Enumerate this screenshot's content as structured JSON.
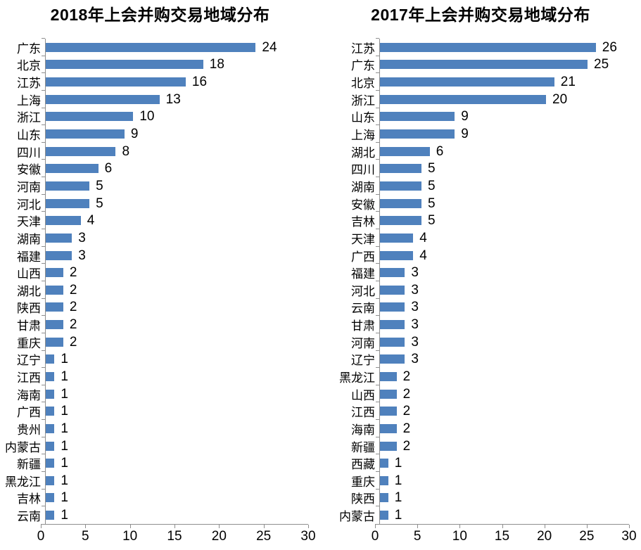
{
  "colors": {
    "bar": "#4F81BD",
    "axis": "#8E8E8E",
    "text": "#000000",
    "background": "#FFFFFF"
  },
  "chart_data": [
    {
      "type": "bar",
      "orientation": "horizontal",
      "title": "2018年上会并购交易地域分布",
      "categories": [
        "广东",
        "北京",
        "江苏",
        "上海",
        "浙江",
        "山东",
        "四川",
        "安徽",
        "河南",
        "河北",
        "天津",
        "湖南",
        "福建",
        "山西",
        "湖北",
        "陕西",
        "甘肃",
        "重庆",
        "辽宁",
        "江西",
        "海南",
        "广西",
        "贵州",
        "内蒙古",
        "新疆",
        "黑龙江",
        "吉林",
        "云南"
      ],
      "values": [
        24,
        18,
        16,
        13,
        10,
        9,
        8,
        6,
        5,
        5,
        4,
        3,
        3,
        2,
        2,
        2,
        2,
        2,
        1,
        1,
        1,
        1,
        1,
        1,
        1,
        1,
        1,
        1
      ],
      "xlim": [
        0,
        30
      ],
      "xticks": [
        0,
        5,
        10,
        15,
        20,
        25,
        30
      ],
      "bar_color": "#4F81BD",
      "data_labels": true,
      "legend": "none",
      "grid": "off"
    },
    {
      "type": "bar",
      "orientation": "horizontal",
      "title": "2017年上会并购交易地域分布",
      "categories": [
        "江苏",
        "广东",
        "北京",
        "浙江",
        "山东",
        "上海",
        "湖北",
        "四川",
        "湖南",
        "安徽",
        "吉林",
        "天津",
        "广西",
        "福建",
        "河北",
        "云南",
        "甘肃",
        "河南",
        "辽宁",
        "黑龙江",
        "山西",
        "江西",
        "海南",
        "新疆",
        "西藏",
        "重庆",
        "陕西",
        "内蒙古"
      ],
      "values": [
        26,
        25,
        21,
        20,
        9,
        9,
        6,
        5,
        5,
        5,
        5,
        4,
        4,
        3,
        3,
        3,
        3,
        3,
        3,
        2,
        2,
        2,
        2,
        2,
        1,
        1,
        1,
        1
      ],
      "xlim": [
        0,
        30
      ],
      "xticks": [
        0,
        5,
        10,
        15,
        20,
        25,
        30
      ],
      "bar_color": "#4F81BD",
      "data_labels": true,
      "legend": "none",
      "grid": "off"
    }
  ]
}
